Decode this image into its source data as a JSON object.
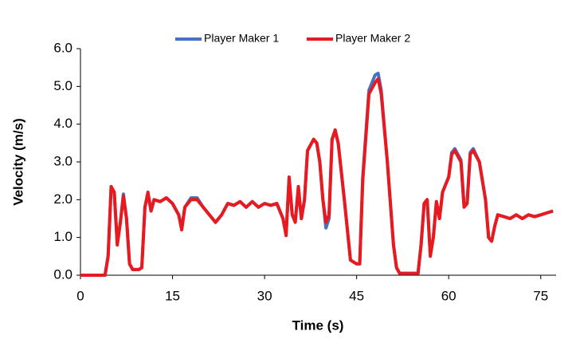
{
  "chart_data": {
    "type": "line",
    "xlabel": "Time (s)",
    "ylabel": "Velocity (m/s)",
    "x": [
      0,
      4,
      4.5,
      5,
      5.5,
      6,
      6.5,
      7,
      7.5,
      8,
      8.5,
      9.5,
      10,
      10.5,
      11,
      11.5,
      12,
      13,
      14,
      15,
      16,
      16.5,
      17,
      18,
      19,
      20,
      21,
      22,
      23,
      24,
      25,
      26,
      27,
      28,
      29,
      30,
      31,
      32,
      33,
      33.5,
      34,
      34.5,
      35,
      35.5,
      36,
      36.5,
      37,
      38,
      38.5,
      39,
      39.5,
      40,
      40.5,
      41,
      41.5,
      42,
      43,
      44,
      45,
      45.5,
      46,
      47,
      48,
      48.5,
      49,
      50,
      51,
      51.5,
      52,
      55,
      55.5,
      56,
      56.5,
      57,
      57.5,
      58,
      58.5,
      59,
      60,
      60.5,
      61,
      62,
      62.5,
      63,
      63.5,
      64,
      65,
      66,
      66.5,
      67,
      67.5,
      68,
      69,
      70,
      71,
      72,
      73,
      74,
      75,
      76,
      77
    ],
    "series": [
      {
        "name": "Player Maker 1",
        "color": "#4472c4",
        "values": [
          0,
          0,
          0.5,
          2.3,
          2.2,
          0.85,
          1.4,
          2.15,
          1.5,
          0.3,
          0.15,
          0.15,
          0.2,
          1.8,
          2.15,
          1.7,
          2.0,
          1.95,
          2.05,
          1.9,
          1.6,
          1.25,
          1.8,
          2.05,
          2.05,
          1.8,
          1.6,
          1.4,
          1.6,
          1.9,
          1.85,
          1.95,
          1.8,
          1.95,
          1.8,
          1.9,
          1.85,
          1.9,
          1.5,
          1.1,
          2.55,
          1.6,
          1.45,
          2.3,
          1.5,
          2.0,
          3.3,
          3.6,
          3.5,
          3.0,
          2.0,
          1.25,
          1.5,
          3.6,
          3.8,
          3.5,
          2.0,
          0.4,
          0.3,
          0.3,
          2.6,
          4.9,
          5.3,
          5.35,
          4.9,
          3.0,
          0.8,
          0.2,
          0.05,
          0.05,
          0.8,
          1.9,
          2.0,
          0.55,
          1.0,
          1.95,
          1.5,
          2.2,
          2.6,
          3.25,
          3.35,
          3.05,
          1.85,
          1.9,
          3.25,
          3.35,
          3.0,
          2.0,
          1.0,
          0.9,
          1.3,
          1.6,
          1.55,
          1.5,
          1.6,
          1.5,
          1.6,
          1.55,
          1.6,
          1.65,
          1.7
        ]
      },
      {
        "name": "Player Maker 2",
        "color": "#e8191f",
        "values": [
          0,
          0,
          0.5,
          2.35,
          2.2,
          0.8,
          1.4,
          2.1,
          1.5,
          0.3,
          0.15,
          0.15,
          0.2,
          1.8,
          2.2,
          1.7,
          2.0,
          1.95,
          2.05,
          1.9,
          1.6,
          1.2,
          1.8,
          2.0,
          2.0,
          1.8,
          1.6,
          1.4,
          1.6,
          1.9,
          1.85,
          1.95,
          1.8,
          1.95,
          1.8,
          1.9,
          1.85,
          1.9,
          1.5,
          1.05,
          2.6,
          1.6,
          1.4,
          2.35,
          1.5,
          2.0,
          3.3,
          3.6,
          3.5,
          3.0,
          2.0,
          1.4,
          1.6,
          3.6,
          3.85,
          3.5,
          2.0,
          0.4,
          0.3,
          0.3,
          2.5,
          4.8,
          5.1,
          5.2,
          4.8,
          3.0,
          0.8,
          0.2,
          0.05,
          0.05,
          0.8,
          1.9,
          2.0,
          0.5,
          1.0,
          1.95,
          1.5,
          2.2,
          2.6,
          3.2,
          3.3,
          3.0,
          1.8,
          1.9,
          3.2,
          3.3,
          3.0,
          2.0,
          1.0,
          0.9,
          1.3,
          1.6,
          1.55,
          1.5,
          1.6,
          1.5,
          1.6,
          1.55,
          1.6,
          1.65,
          1.7
        ]
      }
    ],
    "xlim": [
      0,
      77.5
    ],
    "xticks": [
      0,
      15,
      30,
      45,
      60,
      75
    ],
    "ylim": [
      0,
      6
    ],
    "yticks": [
      {
        "value": 0,
        "label": "0.0"
      },
      {
        "value": 1,
        "label": "1.0"
      },
      {
        "value": 2,
        "label": "2.0"
      },
      {
        "value": 3,
        "label": "3.0"
      },
      {
        "value": 4,
        "label": "4.0"
      },
      {
        "value": 5,
        "label": "5.0"
      },
      {
        "value": 6,
        "label": "6.0"
      }
    ],
    "grid": false,
    "legend": "top"
  }
}
